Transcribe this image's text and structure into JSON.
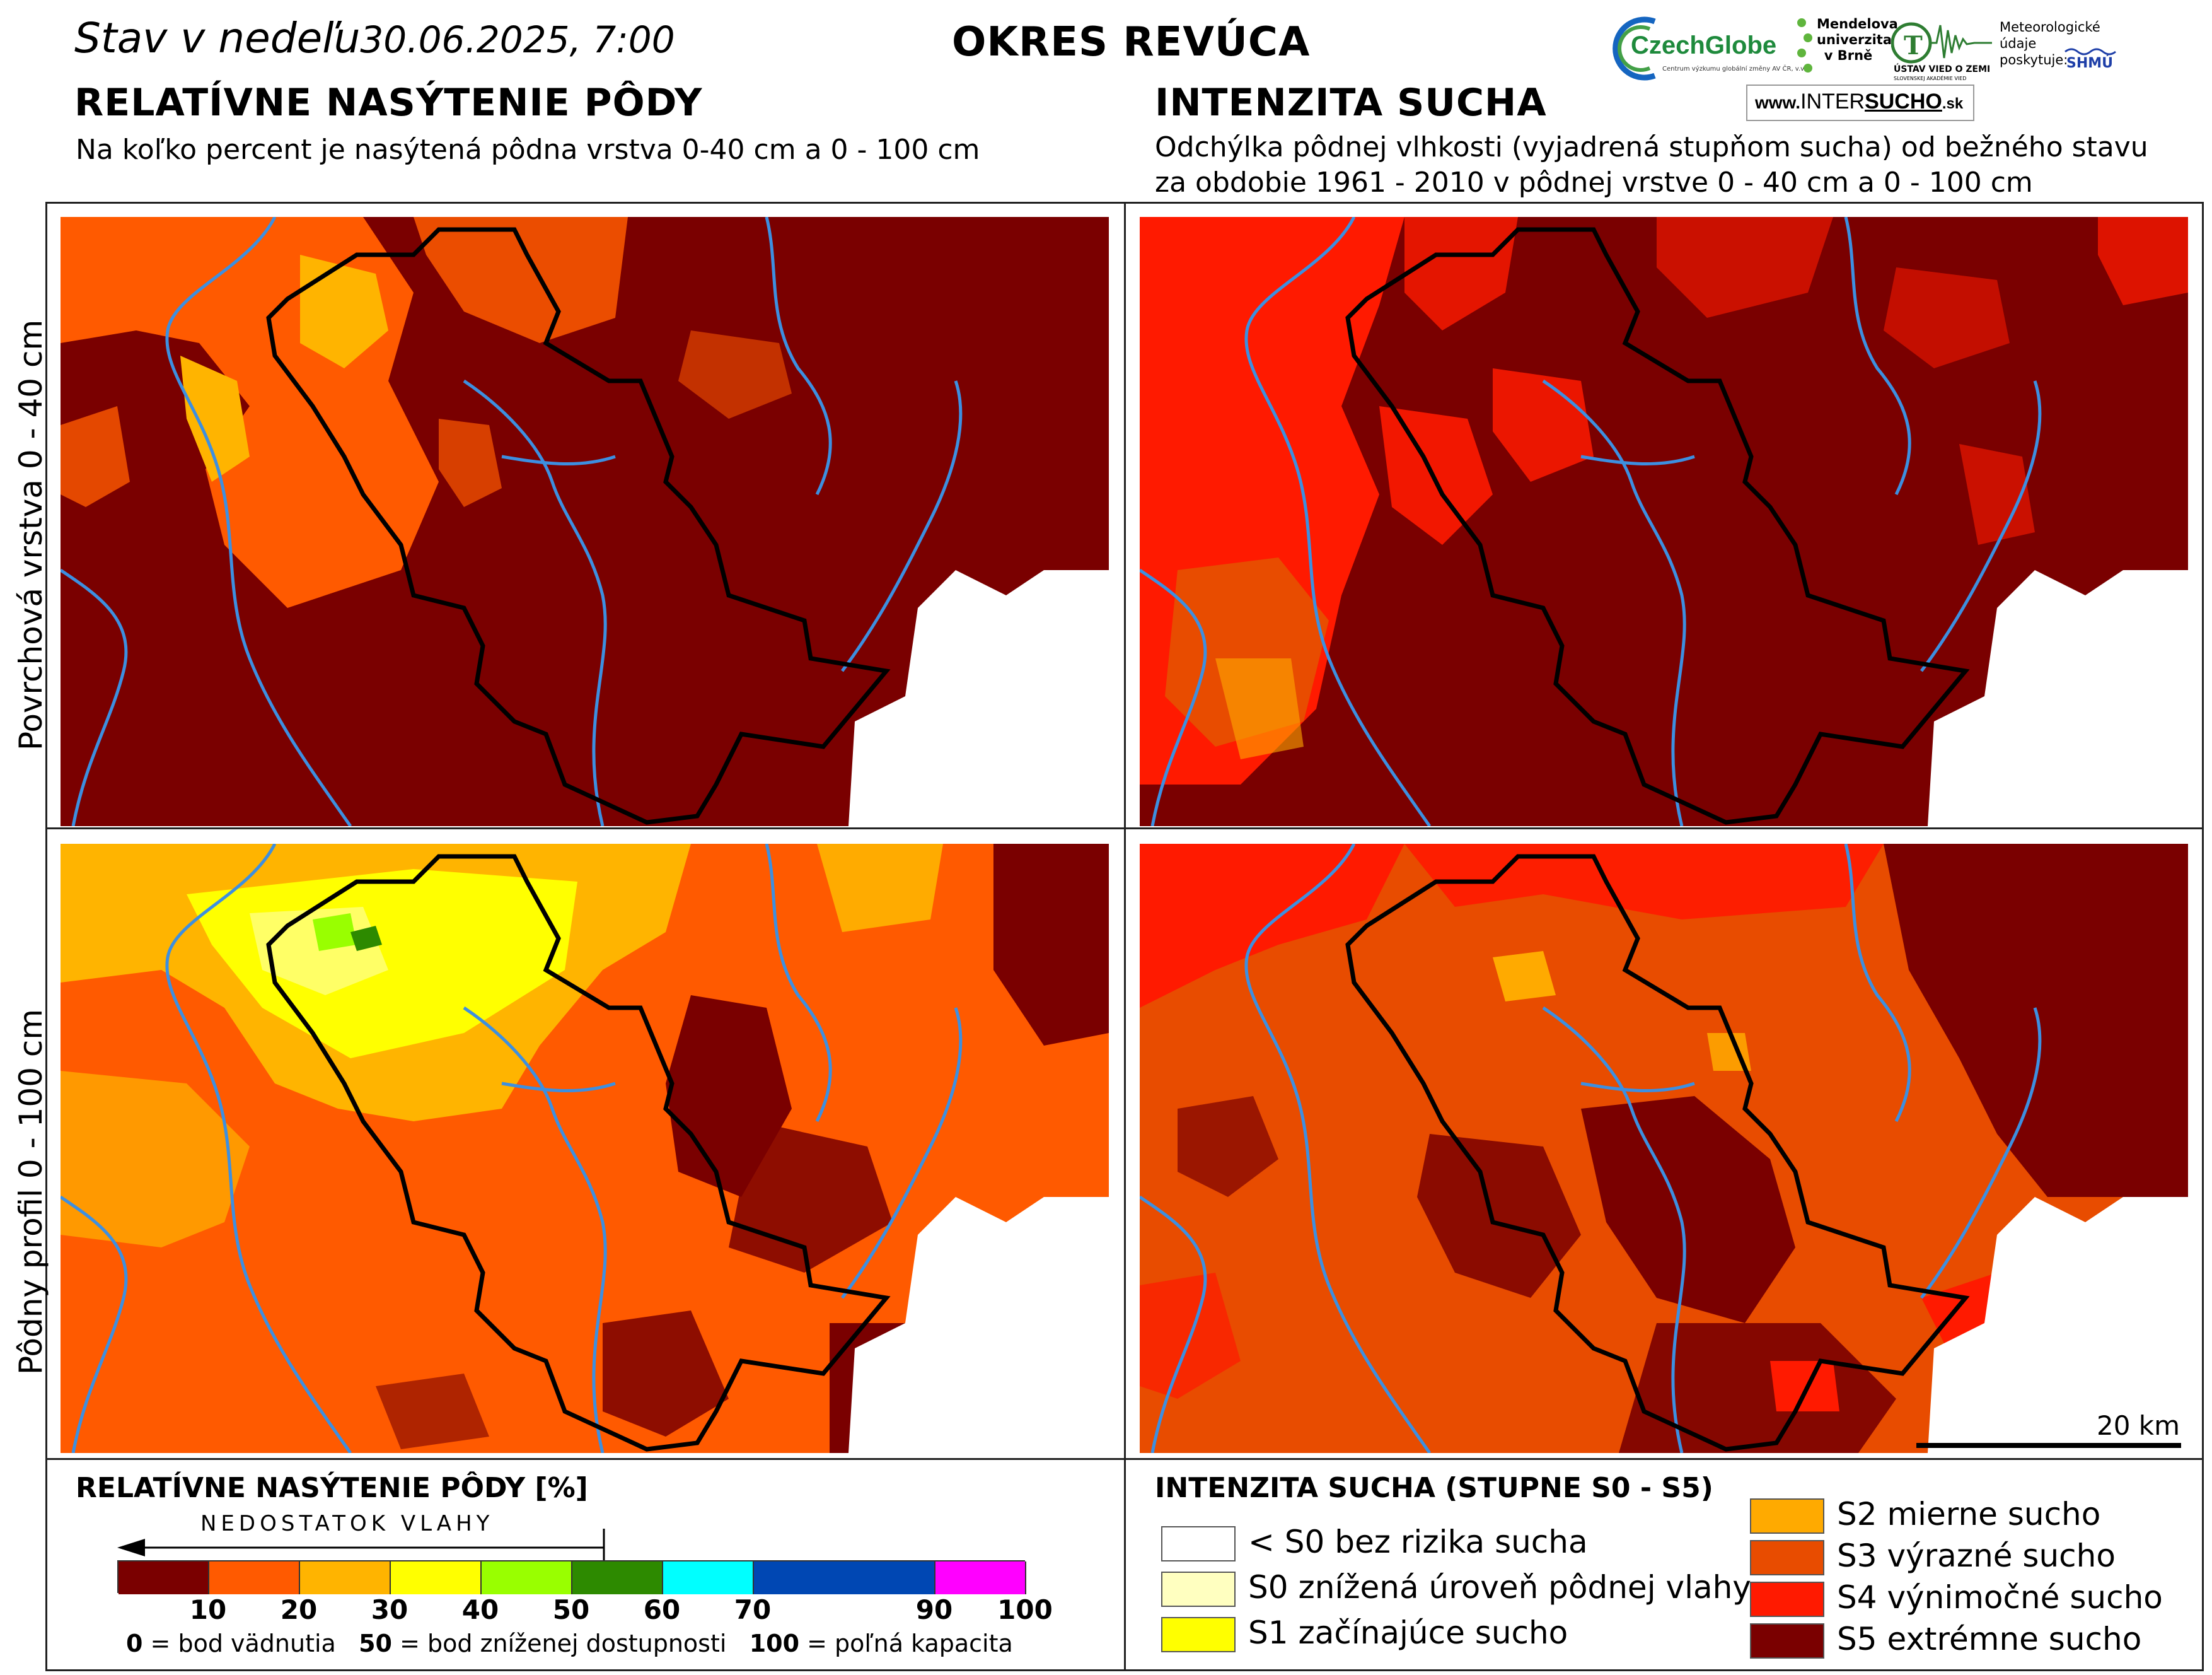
{
  "header": {
    "status_prefix": "Stav v nedeľu",
    "status_date": "30.06.2025, 7:00",
    "district": "OKRES REVÚCA"
  },
  "logos": {
    "czechglobe": "CzechGlobe",
    "czechglobe_sub": "Centrum výzkumu globální změny AV ČR, v.v.i.",
    "mendel": "Mendelova univerzita v Brně",
    "usvz": "ÚSTAV VIED O ZEMI",
    "usvz_sub": "SLOVENSKEJ AKADÉMIE VIED",
    "meteo": "Meteorologické údaje poskytuje:",
    "shmu": "SHMÚ",
    "intersucho_www": "www.",
    "intersucho_a": "INTER",
    "intersucho_b": "SUCHO",
    "intersucho_sk": ".sk"
  },
  "left_section": {
    "title": "RELATÍVNE NASÝTENIE PÔDY",
    "subtitle": "Na koľko percent je nasýtená pôdna vrstva 0-40 cm a 0 - 100 cm"
  },
  "right_section": {
    "title": "INTENZITA SUCHA",
    "subtitle_line1": "Odchýlka pôdnej vlhkosti (vyjadrená stupňom sucha) od bežného stavu",
    "subtitle_line2": "za obdobie 1961 - 2010 v pôdnej vrstve 0 - 40 cm a 0 - 100 cm"
  },
  "row_labels": {
    "top": "Povrchová vrstva 0 - 40 cm",
    "bottom": "Pôdny profil 0 - 100 cm"
  },
  "scale_bar": {
    "label": "20 km"
  },
  "saturation_legend": {
    "title": "RELATÍVNE NASÝTENIE PÔDY [%]",
    "arrow_label": "NEDOSTATOK VLAHY",
    "segments": [
      {
        "from": 0,
        "to": 10,
        "color": "#7a0000"
      },
      {
        "from": 10,
        "to": 20,
        "color": "#ff5a00"
      },
      {
        "from": 20,
        "to": 30,
        "color": "#ffb400"
      },
      {
        "from": 30,
        "to": 40,
        "color": "#ffff00"
      },
      {
        "from": 40,
        "to": 50,
        "color": "#99ff00"
      },
      {
        "from": 50,
        "to": 60,
        "color": "#2d8a00"
      },
      {
        "from": 60,
        "to": 70,
        "color": "#00ffff"
      },
      {
        "from": 70,
        "to": 90,
        "color": "#0047b3"
      },
      {
        "from": 90,
        "to": 100,
        "color": "#ff00ff"
      }
    ],
    "ticks": [
      "10",
      "20",
      "30",
      "40",
      "50",
      "60",
      "70",
      "90",
      "100"
    ],
    "note_0_num": "0",
    "note_0_text": "= bod vädnutia",
    "note_50_num": "50",
    "note_50_text": "= bod zníženej dostupnosti",
    "note_100_num": "100",
    "note_100_text": "= poľná kapacita"
  },
  "drought_legend": {
    "title": "INTENZITA SUCHA (STUPNE S0 - S5)",
    "items": [
      {
        "label": "< S0 bez rizika sucha",
        "color": "#ffffff"
      },
      {
        "label": "S0 znížená úroveň pôdnej vlahy",
        "color": "#ffffc0"
      },
      {
        "label": "S1 začínajúce sucho",
        "color": "#ffff00"
      },
      {
        "label": "S2 mierne sucho",
        "color": "#ffaa00"
      },
      {
        "label": "S3 výrazné sucho",
        "color": "#e84c00"
      },
      {
        "label": "S4 výnimočné sucho",
        "color": "#ff1a00"
      },
      {
        "label": "S5 extrémne sucho",
        "color": "#7a0000"
      }
    ]
  },
  "colors": {
    "dark_red": "#7a0000",
    "orange": "#ff5a00",
    "light_orange": "#ffb400",
    "yellow": "#ffff00",
    "lime": "#99ff00",
    "red": "#ff1a00",
    "river": "#3d8fe0",
    "border": "#000000"
  }
}
